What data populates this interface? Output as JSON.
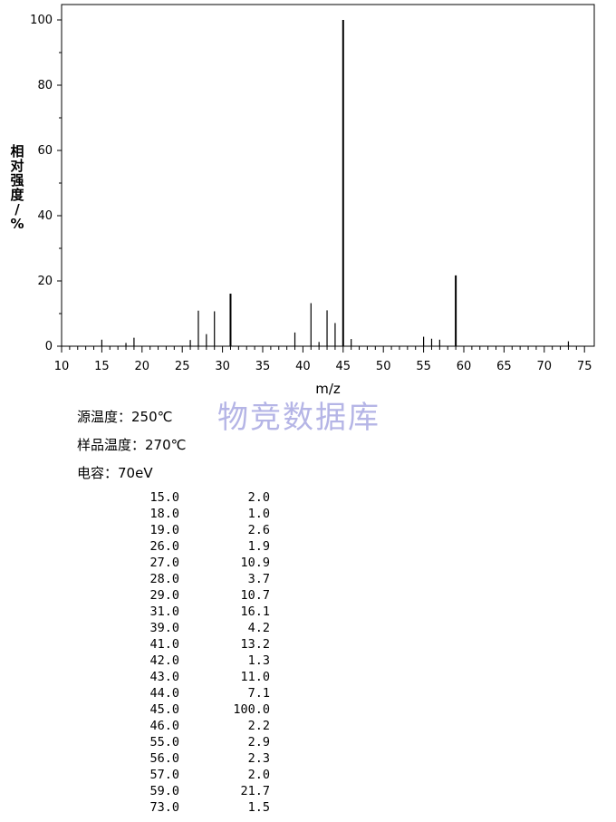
{
  "chart_data": {
    "type": "bar",
    "xlabel": "m/z",
    "ylabel": [
      "相",
      "对",
      "强",
      "度",
      "/",
      "%"
    ],
    "xlim": [
      10,
      76
    ],
    "ylim": [
      0,
      100
    ],
    "x_ticks": [
      10,
      15,
      20,
      25,
      30,
      35,
      40,
      45,
      50,
      55,
      60,
      65,
      70,
      75
    ],
    "y_ticks": [
      0,
      20,
      40,
      60,
      80,
      100
    ],
    "grid": false,
    "bar_color": "#000000",
    "points": [
      {
        "x": 15,
        "y": 2.0
      },
      {
        "x": 18,
        "y": 1.0
      },
      {
        "x": 19,
        "y": 2.6
      },
      {
        "x": 26,
        "y": 1.9
      },
      {
        "x": 27,
        "y": 10.9
      },
      {
        "x": 28,
        "y": 3.7
      },
      {
        "x": 29,
        "y": 10.7
      },
      {
        "x": 31,
        "y": 16.1
      },
      {
        "x": 39,
        "y": 4.2
      },
      {
        "x": 41,
        "y": 13.2
      },
      {
        "x": 42,
        "y": 1.3
      },
      {
        "x": 43,
        "y": 11.0
      },
      {
        "x": 44,
        "y": 7.1
      },
      {
        "x": 45,
        "y": 100.0
      },
      {
        "x": 46,
        "y": 2.2
      },
      {
        "x": 55,
        "y": 2.9
      },
      {
        "x": 56,
        "y": 2.3
      },
      {
        "x": 57,
        "y": 2.0
      },
      {
        "x": 59,
        "y": 21.7
      },
      {
        "x": 73,
        "y": 1.5
      }
    ]
  },
  "watermark": "物竞数据库",
  "meta": {
    "source_temp": "源温度：250℃",
    "sample_temp": "样品温度：270℃",
    "energy": "电容：70eV"
  },
  "table": [
    [
      "15.0",
      "2.0"
    ],
    [
      "18.0",
      "1.0"
    ],
    [
      "19.0",
      "2.6"
    ],
    [
      "26.0",
      "1.9"
    ],
    [
      "27.0",
      "10.9"
    ],
    [
      "28.0",
      "3.7"
    ],
    [
      "29.0",
      "10.7"
    ],
    [
      "31.0",
      "16.1"
    ],
    [
      "39.0",
      "4.2"
    ],
    [
      "41.0",
      "13.2"
    ],
    [
      "42.0",
      "1.3"
    ],
    [
      "43.0",
      "11.0"
    ],
    [
      "44.0",
      "7.1"
    ],
    [
      "45.0",
      "100.0"
    ],
    [
      "46.0",
      "2.2"
    ],
    [
      "55.0",
      "2.9"
    ],
    [
      "56.0",
      "2.3"
    ],
    [
      "57.0",
      "2.0"
    ],
    [
      "59.0",
      "21.7"
    ],
    [
      "73.0",
      "1.5"
    ]
  ]
}
